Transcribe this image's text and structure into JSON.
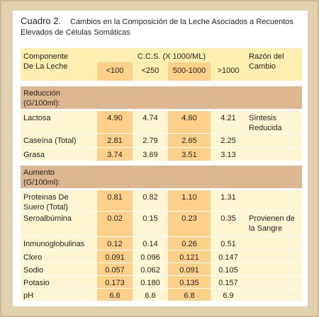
{
  "title": {
    "label": "Cuadro 2.",
    "lines": [
      "Cambios en la Composición de la Leche Asociados a Recuentos",
      "Elevados de Células Somáticas"
    ]
  },
  "table": {
    "header": {
      "component": "Componente\nDe La Leche",
      "ccs": "C.C.S. (X 1000/ML)",
      "ranges": [
        "<100",
        "<250",
        "500-1000",
        ">1000"
      ],
      "reason": "Razón del\nCambio"
    },
    "sections": [
      {
        "title": "Reducción\n(G/100ml):",
        "rows": [
          {
            "name": "Lactosa",
            "values": [
              "4.90",
              "4.74",
              "4.60",
              "4.21"
            ],
            "reason": "Síntesis\nReducida"
          },
          {
            "name": "Caseína (Total)",
            "values": [
              "2.81",
              "2.79",
              "2.65",
              "2.25"
            ]
          },
          {
            "name": "Grasa",
            "values": [
              "3.74",
              "3.69",
              "3.51",
              "3.13"
            ]
          }
        ]
      },
      {
        "title": "Aumento\n(G/100ml):",
        "rows": [
          {
            "name": "Proteinas De\nSuero (Total)",
            "values": [
              "0.81",
              "0.82",
              "1.10",
              "1.31"
            ]
          },
          {
            "name": "Seroalbúmina",
            "values": [
              "0.02",
              "0.15",
              "0.23",
              "0.35"
            ],
            "reason": "Provienen de\nla Sangre"
          },
          {
            "name": "Inmunoglobulinas",
            "values": [
              "0.12",
              "0.14",
              "0.26",
              "0.51"
            ]
          },
          {
            "name": "Cloro",
            "values": [
              "0.091",
              "0.096",
              "0.121",
              "0.147"
            ]
          },
          {
            "name": "Sodio",
            "values": [
              "0.057",
              "0.062",
              "0.091",
              "0.105"
            ]
          },
          {
            "name": "Potasio",
            "values": [
              "0.173",
              "0.180",
              "0.135",
              "0.157"
            ]
          },
          {
            "name": "pH",
            "values": [
              "6.6",
              "6.6",
              "6.8",
              "6.9"
            ]
          }
        ]
      }
    ]
  }
}
